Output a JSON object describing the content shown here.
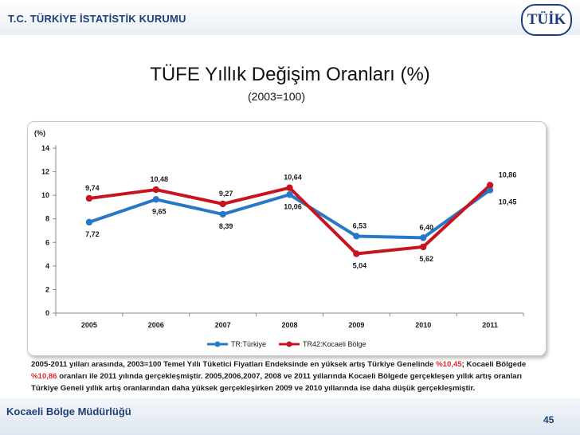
{
  "header": {
    "org": "T.C. TÜRKİYE İSTATİSTİK KURUMU",
    "logo_text": "TÜİK"
  },
  "title": "TÜFE Yıllık Değişim Oranları (%)",
  "subtitle": "(2003=100)",
  "chart_data": {
    "type": "line",
    "ylabel": "(%)",
    "ylim": [
      0,
      14
    ],
    "yticks": [
      0,
      2,
      4,
      6,
      8,
      10,
      12,
      14
    ],
    "categories": [
      "2005",
      "2006",
      "2007",
      "2008",
      "2009",
      "2010",
      "2011"
    ],
    "series": [
      {
        "name": "TR:Türkiye",
        "color": "#2878c8",
        "values": [
          7.72,
          9.65,
          8.39,
          10.06,
          6.53,
          6.4,
          10.45
        ],
        "labels": [
          "7,72",
          "9,65",
          "8,39",
          "10,06",
          "6,53",
          "6,40",
          "10,45"
        ]
      },
      {
        "name": "TR42:Kocaeli Bölge",
        "color": "#c8141e",
        "values": [
          9.74,
          10.48,
          9.27,
          10.64,
          5.04,
          5.62,
          10.86
        ],
        "labels": [
          "9,74",
          "10,48",
          "9,27",
          "10,64",
          "5,04",
          "5,62",
          "10,86"
        ]
      }
    ],
    "legend": "bottom-center"
  },
  "note": {
    "p1": "2005-2011 yılları arasında, 2003=100 Temel Yıllı Tüketici Fiyatları Endeksinde en yüksek  artış Türkiye Genelinde ",
    "v1": "%10,45",
    "p2": ";  Kocaeli Bölgede ",
    "v2": "%10,86",
    "p3": " oranları ile 2011 yılında gerçekleşmiştir. 2005,2006,2007, 2008 ve 2011 yıllarında Kocaeli Bölgede gerçekleşen yıllık artış oranları Türkiye Geneli yıllık artış oranlarından daha yüksek  gerçekleşirken 2009 ve 2010 yıllarında ise daha düşük  gerçekleşmiştir."
  },
  "footer": {
    "left": "Kocaeli Bölge Müdürlüğü",
    "page": "45"
  }
}
